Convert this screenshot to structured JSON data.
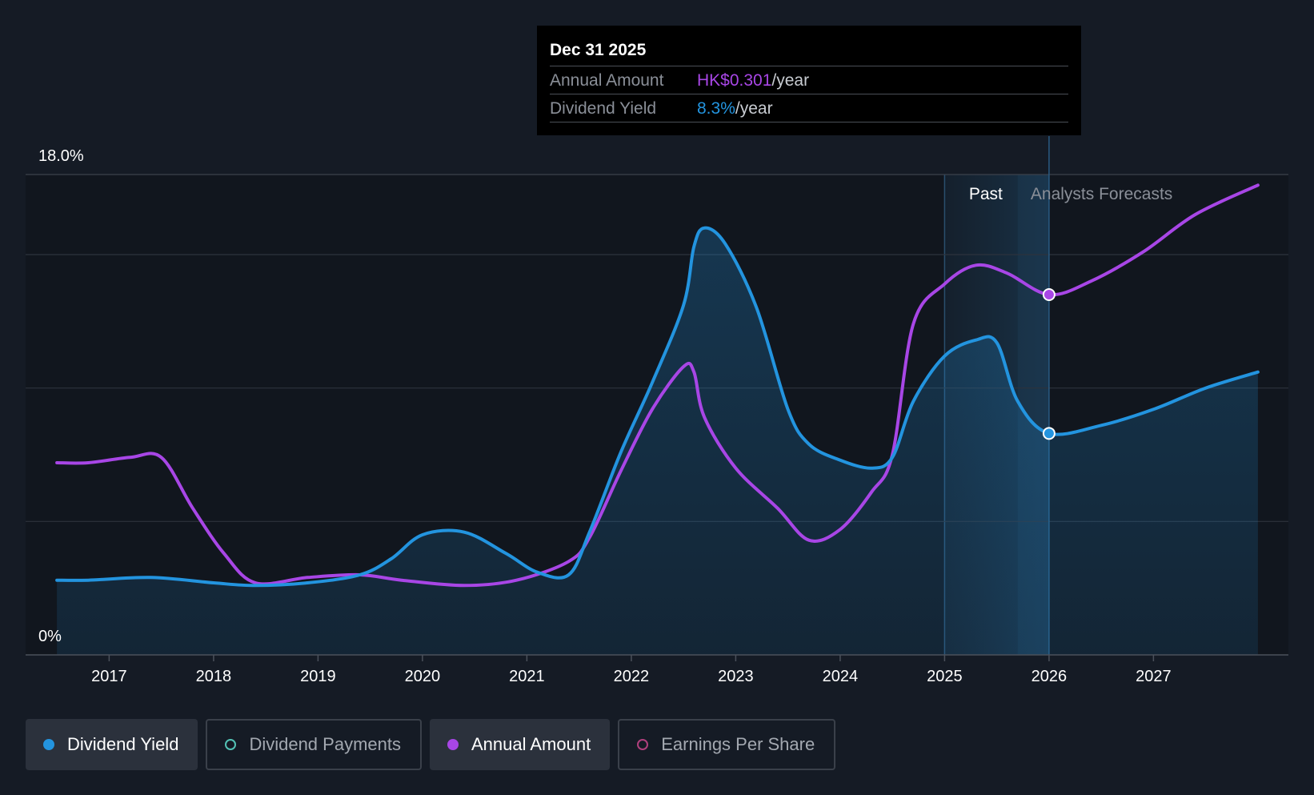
{
  "tooltip": {
    "date": "Dec 31 2025",
    "annual_amount_label": "Annual Amount",
    "annual_amount_value": "HK$0.301",
    "annual_amount_unit": "/year",
    "dividend_yield_label": "Dividend Yield",
    "dividend_yield_value": "8.3%",
    "dividend_yield_unit": "/year"
  },
  "legend": {
    "dividend_yield": "Dividend Yield",
    "dividend_payments": "Dividend Payments",
    "annual_amount": "Annual Amount",
    "earnings_per_share": "Earnings Per Share"
  },
  "colors": {
    "background": "#151b25",
    "dividend_yield": "#2394df",
    "annual_amount": "#a846e6",
    "grid": "#2d333d",
    "axis_text": "#ffffff"
  },
  "chart_data": {
    "type": "line",
    "title": "",
    "xlabel": "",
    "ylabel": "",
    "ylim": [
      0,
      18
    ],
    "xlim": [
      2016.2,
      2028.0
    ],
    "y_axis_labels": {
      "top": "18.0%",
      "bottom": "0%"
    },
    "x_ticks": [
      2017,
      2018,
      2019,
      2020,
      2021,
      2022,
      2023,
      2024,
      2025,
      2026,
      2027
    ],
    "x_tick_labels": [
      "2017",
      "2018",
      "2019",
      "2020",
      "2021",
      "2022",
      "2023",
      "2024",
      "2025",
      "2026",
      "2027"
    ],
    "gridlines_y": [
      18,
      15,
      10,
      5,
      0
    ],
    "regions": {
      "past_label": "Past",
      "forecast_label": "Analysts Forecasts",
      "past_start": 2025.0,
      "past_end": 2026.0
    },
    "highlight_x": 2026.0,
    "series": [
      {
        "name": "Dividend Yield",
        "key": "dividend_yield",
        "unit": "%",
        "area": true,
        "x": [
          2016.5,
          2016.8,
          2017.4,
          2018.0,
          2018.4,
          2018.9,
          2019.4,
          2019.7,
          2020.0,
          2020.4,
          2020.8,
          2021.1,
          2021.4,
          2021.6,
          2021.9,
          2022.2,
          2022.5,
          2022.6,
          2022.7,
          2022.9,
          2023.2,
          2023.5,
          2023.7,
          2024.0,
          2024.3,
          2024.5,
          2024.7,
          2025.0,
          2025.3,
          2025.5,
          2025.7,
          2026.0,
          2026.5,
          2027.0,
          2027.5,
          2028.0
        ],
        "y": [
          2.8,
          2.8,
          2.9,
          2.7,
          2.6,
          2.7,
          3.0,
          3.6,
          4.5,
          4.6,
          3.8,
          3.1,
          3.0,
          4.6,
          7.6,
          10.2,
          13.1,
          15.3,
          16.0,
          15.4,
          13.0,
          9.2,
          7.9,
          7.3,
          7.0,
          7.4,
          9.5,
          11.2,
          11.8,
          11.7,
          9.5,
          8.3,
          8.6,
          9.2,
          10.0,
          10.6
        ]
      },
      {
        "name": "Annual Amount",
        "key": "annual_amount",
        "unit": "HK$",
        "area": false,
        "x": [
          2016.5,
          2016.8,
          2017.2,
          2017.5,
          2017.8,
          2018.1,
          2018.4,
          2018.9,
          2019.4,
          2019.8,
          2020.4,
          2020.9,
          2021.4,
          2021.6,
          2021.9,
          2022.2,
          2022.5,
          2022.6,
          2022.7,
          2023.0,
          2023.4,
          2023.7,
          2024.0,
          2024.3,
          2024.5,
          2024.7,
          2025.0,
          2025.3,
          2025.6,
          2026.0,
          2026.4,
          2026.9,
          2027.4,
          2028.0
        ],
        "y": [
          7.2,
          7.2,
          7.4,
          7.4,
          5.5,
          3.8,
          2.7,
          2.9,
          3.0,
          2.8,
          2.6,
          2.8,
          3.5,
          4.4,
          6.9,
          9.2,
          10.8,
          10.6,
          8.9,
          7.0,
          5.5,
          4.3,
          4.7,
          6.1,
          7.5,
          12.4,
          13.9,
          14.6,
          14.3,
          13.5,
          14.0,
          15.1,
          16.5,
          17.6
        ]
      }
    ]
  }
}
